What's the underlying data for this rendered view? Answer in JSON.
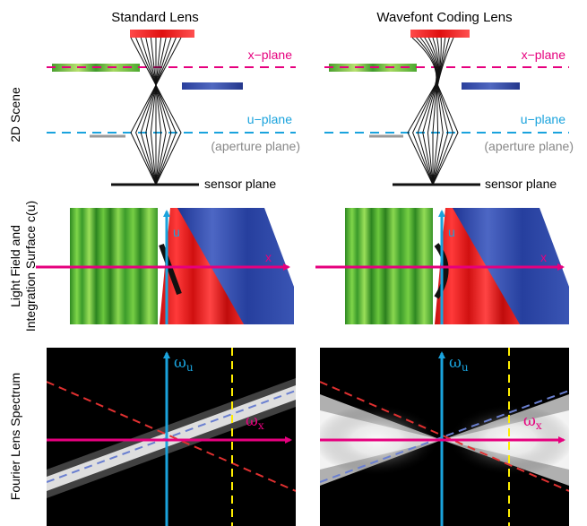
{
  "columns": {
    "left_title": "Standard Lens",
    "right_title": "Wavefont Coding Lens"
  },
  "rows": {
    "scene_label": "2D Scene",
    "lightfield_label_line1": "Light Field and",
    "lightfield_label_line2": "Integration Surface c(u)",
    "fourier_label": "Fourier Lens Spectrum"
  },
  "planes": {
    "x_plane": "x−plane",
    "u_plane": "u−plane",
    "aperture": "(aperture plane)",
    "sensor": "sensor plane"
  },
  "axes": {
    "u": "u",
    "x": "x",
    "omega": "ω",
    "omega_u_sub": "u",
    "omega_x_sub": "x"
  },
  "colors": {
    "magenta": "#e6007e",
    "cyan": "#1aa3dd",
    "red": "#ee2222",
    "blue": "#2244aa",
    "green": "#55bb33",
    "yellow": "#ffee00",
    "gray": "#999999"
  }
}
